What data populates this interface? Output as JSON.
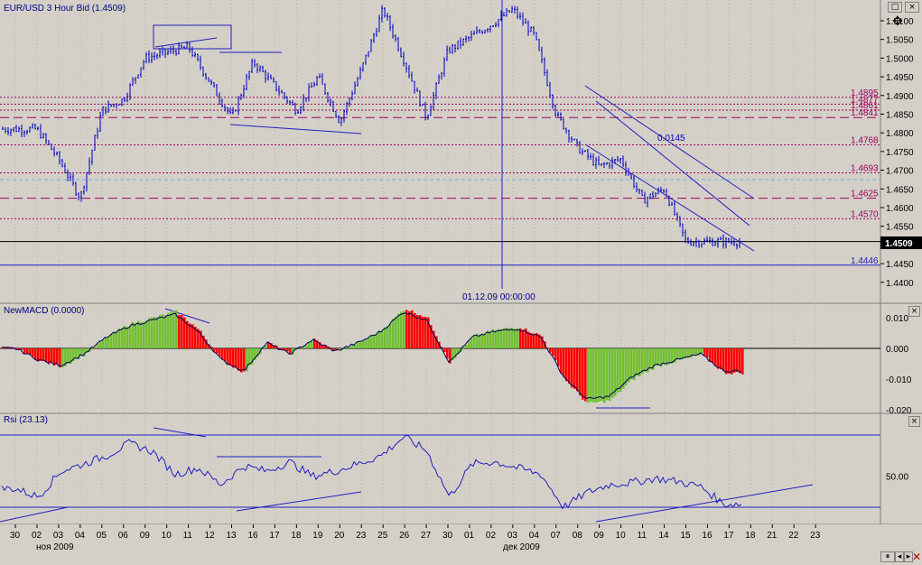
{
  "title": "EUR/USD 3 Hour Bid (1.4509)",
  "current_price_label": "1.4509",
  "vertical_marker_label": "01.12.09 00:00:00",
  "panels": {
    "price": {
      "y_ticks": [
        "1.5100",
        "1.5050",
        "1.5000",
        "1.4950",
        "1.4900",
        "1.4850",
        "1.4800",
        "1.4750",
        "1.4700",
        "1.4650",
        "1.4600",
        "1.4550",
        "1.4500",
        "1.4450",
        "1.4400"
      ],
      "levels": [
        {
          "value": 1.4895,
          "label": "1.4895",
          "style": "dotted",
          "color": "#a0005a"
        },
        {
          "value": 1.4877,
          "label": "1.4877",
          "style": "dotted",
          "color": "#a0005a"
        },
        {
          "value": 1.4861,
          "label": "1.4861",
          "style": "dotted",
          "color": "#a0005a"
        },
        {
          "value": 1.4841,
          "label": "1.4841",
          "style": "dashed",
          "color": "#a0005a"
        },
        {
          "value": 1.4768,
          "label": "1.4768",
          "style": "dotted",
          "color": "#a0005a"
        },
        {
          "value": 1.4693,
          "label": "1.4693",
          "style": "dotted",
          "color": "#a0005a"
        },
        {
          "value": 1.4625,
          "label": "1.4625",
          "style": "dashed",
          "color": "#a0005a"
        },
        {
          "value": 1.457,
          "label": "1.4570",
          "style": "dotted",
          "color": "#a0005a"
        },
        {
          "value": 1.4446,
          "label": "1.4446",
          "style": "solid",
          "color": "#2020c0"
        }
      ],
      "channel_label": "0.0145"
    },
    "macd": {
      "title": "NewMACD (0.0000)",
      "y_ticks": [
        "0.010",
        "0.000",
        "-0.010",
        "-0.020"
      ]
    },
    "rsi": {
      "title": "Rsi (23.13)",
      "y_ticks": [
        "50.00"
      ]
    }
  },
  "x_axis": {
    "ticks": [
      "30",
      "02",
      "03",
      "04",
      "05",
      "06",
      "09",
      "10",
      "11",
      "12",
      "13",
      "16",
      "17",
      "18",
      "19",
      "20",
      "23",
      "25",
      "26",
      "27",
      "30",
      "01",
      "02",
      "03",
      "04",
      "07",
      "08",
      "09",
      "10",
      "11",
      "14",
      "15",
      "16",
      "17",
      "18",
      "21",
      "22",
      "23"
    ],
    "months": [
      "ноя 2009",
      "дек 2009"
    ]
  },
  "chart_data": {
    "type": "candlestick",
    "title": "EUR/USD 3 Hour Bid (1.4509)",
    "x_unit": "trading day, 3-hour bars",
    "start": "2009-11-02",
    "end": "2009-12-15",
    "close_path_key_points": [
      {
        "date": "2009-11-02",
        "value": 1.481
      },
      {
        "date": "2009-11-03",
        "value": 1.473
      },
      {
        "date": "2009-11-04",
        "value": 1.4625
      },
      {
        "date": "2009-11-05",
        "value": 1.486
      },
      {
        "date": "2009-11-06",
        "value": 1.489
      },
      {
        "date": "2009-11-09",
        "value": 1.5
      },
      {
        "date": "2009-11-11",
        "value": 1.503
      },
      {
        "date": "2009-11-13",
        "value": 1.484
      },
      {
        "date": "2009-11-16",
        "value": 1.499
      },
      {
        "date": "2009-11-18",
        "value": 1.486
      },
      {
        "date": "2009-11-19",
        "value": 1.495
      },
      {
        "date": "2009-11-20",
        "value": 1.483
      },
      {
        "date": "2009-11-23",
        "value": 1.497
      },
      {
        "date": "2009-11-25",
        "value": 1.513
      },
      {
        "date": "2009-11-26",
        "value": 1.499
      },
      {
        "date": "2009-11-27",
        "value": 1.484
      },
      {
        "date": "2009-11-30",
        "value": 1.502
      },
      {
        "date": "2009-12-02",
        "value": 1.509
      },
      {
        "date": "2009-12-03",
        "value": 1.513
      },
      {
        "date": "2009-12-04",
        "value": 1.506
      },
      {
        "date": "2009-12-07",
        "value": 1.485
      },
      {
        "date": "2009-12-08",
        "value": 1.476
      },
      {
        "date": "2009-12-09",
        "value": 1.471
      },
      {
        "date": "2009-12-10",
        "value": 1.473
      },
      {
        "date": "2009-12-11",
        "value": 1.462
      },
      {
        "date": "2009-12-14",
        "value": 1.465
      },
      {
        "date": "2009-12-15",
        "value": 1.4509
      }
    ],
    "macd_histogram_approx": [
      0.0,
      -0.004,
      -0.006,
      -0.002,
      0.004,
      0.008,
      0.01,
      0.012,
      0.006,
      -0.004,
      -0.008,
      0.002,
      -0.002,
      0.003,
      -0.001,
      0.002,
      0.006,
      0.013,
      0.01,
      -0.005,
      0.004,
      0.006,
      0.007,
      0.004,
      -0.01,
      -0.018,
      -0.017,
      -0.01,
      -0.006,
      -0.004,
      -0.002,
      -0.008
    ],
    "rsi_approx": [
      38,
      30,
      55,
      62,
      70,
      82,
      74,
      52,
      58,
      42,
      60,
      55,
      64,
      50,
      55,
      62,
      70,
      88,
      75,
      30,
      62,
      64,
      58,
      52,
      20,
      34,
      42,
      44,
      48,
      45,
      40,
      23.13
    ],
    "ylim_price": [
      1.44,
      1.513
    ]
  }
}
